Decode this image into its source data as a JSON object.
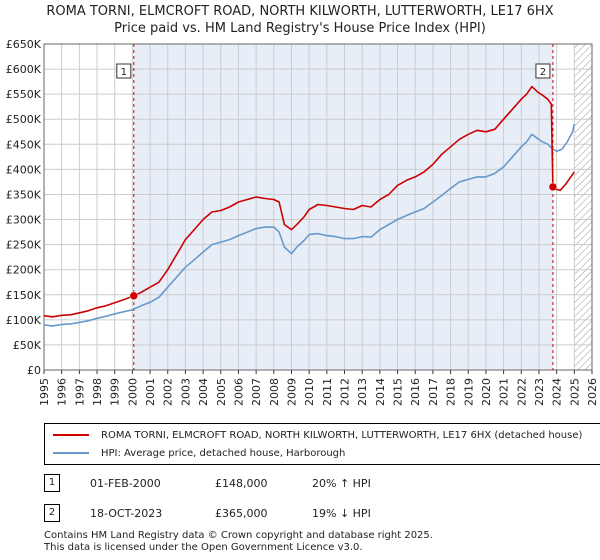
{
  "title_line1": "ROMA TORNI, ELMCROFT ROAD, NORTH KILWORTH, LUTTERWORTH, LE17 6HX",
  "title_line2": "Price paid vs. HM Land Registry's House Price Index (HPI)",
  "colors": {
    "property": "#cc0000",
    "hpi": "#6699cc",
    "shade": "#e8eef8",
    "grid": "#cccccc",
    "marker_line": "#cc0000"
  },
  "chart_data": {
    "type": "line",
    "title": "Price paid vs. HM Land Registry's House Price Index (HPI)",
    "xlabel": "",
    "ylabel": "",
    "xlim": [
      1995,
      2026
    ],
    "ylim": [
      0,
      650000
    ],
    "yticks": [
      {
        "v": 0,
        "label": "£0"
      },
      {
        "v": 50000,
        "label": "£50K"
      },
      {
        "v": 100000,
        "label": "£100K"
      },
      {
        "v": 150000,
        "label": "£150K"
      },
      {
        "v": 200000,
        "label": "£200K"
      },
      {
        "v": 250000,
        "label": "£250K"
      },
      {
        "v": 300000,
        "label": "£300K"
      },
      {
        "v": 350000,
        "label": "£350K"
      },
      {
        "v": 400000,
        "label": "£400K"
      },
      {
        "v": 450000,
        "label": "£450K"
      },
      {
        "v": 500000,
        "label": "£500K"
      },
      {
        "v": 550000,
        "label": "£550K"
      },
      {
        "v": 600000,
        "label": "£600K"
      },
      {
        "v": 650000,
        "label": "£650K"
      }
    ],
    "xticks": [
      "1995",
      "1996",
      "1997",
      "1998",
      "1999",
      "2000",
      "2001",
      "2002",
      "2003",
      "2004",
      "2005",
      "2006",
      "2007",
      "2008",
      "2009",
      "2010",
      "2011",
      "2012",
      "2013",
      "2014",
      "2015",
      "2016",
      "2017",
      "2018",
      "2019",
      "2020",
      "2021",
      "2022",
      "2023",
      "2024",
      "2025",
      "2026"
    ],
    "shaded_period": [
      2000.08,
      2023.79
    ],
    "future_hatch_from": 2025.0,
    "series": [
      {
        "name": "ROMA TORNI, ELMCROFT ROAD, NORTH KILWORTH, LUTTERWORTH, LE17 6HX (detached house)",
        "color": "#cc0000",
        "x": [
          1995.0,
          1995.5,
          1996.0,
          1996.5,
          1997.0,
          1997.5,
          1998.0,
          1998.5,
          1999.0,
          1999.5,
          2000.08,
          2000.5,
          2001.0,
          2001.5,
          2002.0,
          2002.5,
          2003.0,
          2003.5,
          2004.0,
          2004.5,
          2005.0,
          2005.5,
          2006.0,
          2006.5,
          2007.0,
          2007.5,
          2008.0,
          2008.3,
          2008.6,
          2009.0,
          2009.3,
          2009.7,
          2010.0,
          2010.5,
          2011.0,
          2011.5,
          2012.0,
          2012.5,
          2013.0,
          2013.5,
          2014.0,
          2014.5,
          2015.0,
          2015.5,
          2016.0,
          2016.5,
          2017.0,
          2017.5,
          2018.0,
          2018.5,
          2019.0,
          2019.5,
          2020.0,
          2020.5,
          2021.0,
          2021.5,
          2022.0,
          2022.3,
          2022.6,
          2022.9,
          2023.2,
          2023.5,
          2023.7,
          2023.79,
          2024.0,
          2024.2,
          2024.5,
          2024.8,
          2025.0
        ],
        "y": [
          108000,
          106000,
          109000,
          110000,
          114000,
          118000,
          124000,
          128000,
          134000,
          140000,
          148000,
          155000,
          165000,
          175000,
          200000,
          230000,
          260000,
          280000,
          300000,
          315000,
          318000,
          325000,
          335000,
          340000,
          345000,
          342000,
          340000,
          335000,
          290000,
          280000,
          290000,
          305000,
          320000,
          330000,
          328000,
          325000,
          322000,
          320000,
          328000,
          325000,
          340000,
          350000,
          368000,
          378000,
          385000,
          395000,
          410000,
          430000,
          445000,
          460000,
          470000,
          478000,
          475000,
          480000,
          500000,
          520000,
          540000,
          550000,
          565000,
          555000,
          548000,
          540000,
          530000,
          365000,
          360000,
          358000,
          370000,
          385000,
          395000
        ]
      },
      {
        "name": "HPI: Average price, detached house, Harborough",
        "color": "#6699cc",
        "x": [
          1995.0,
          1995.5,
          1996.0,
          1996.5,
          1997.0,
          1997.5,
          1998.0,
          1998.5,
          1999.0,
          1999.5,
          2000.0,
          2000.5,
          2001.0,
          2001.5,
          2002.0,
          2002.5,
          2003.0,
          2003.5,
          2004.0,
          2004.5,
          2005.0,
          2005.5,
          2006.0,
          2006.5,
          2007.0,
          2007.5,
          2008.0,
          2008.3,
          2008.6,
          2009.0,
          2009.3,
          2009.7,
          2010.0,
          2010.5,
          2011.0,
          2011.5,
          2012.0,
          2012.5,
          2013.0,
          2013.5,
          2014.0,
          2014.5,
          2015.0,
          2015.5,
          2016.0,
          2016.5,
          2017.0,
          2017.5,
          2018.0,
          2018.5,
          2019.0,
          2019.5,
          2020.0,
          2020.5,
          2021.0,
          2021.5,
          2022.0,
          2022.3,
          2022.6,
          2022.9,
          2023.2,
          2023.5,
          2023.8,
          2024.0,
          2024.3,
          2024.6,
          2024.9,
          2025.0
        ],
        "y": [
          90000,
          88000,
          91000,
          92000,
          95000,
          98000,
          103000,
          107000,
          112000,
          116000,
          120000,
          128000,
          135000,
          145000,
          165000,
          185000,
          205000,
          220000,
          235000,
          250000,
          255000,
          260000,
          268000,
          275000,
          282000,
          285000,
          285000,
          275000,
          245000,
          232000,
          245000,
          258000,
          270000,
          272000,
          268000,
          266000,
          262000,
          262000,
          266000,
          265000,
          280000,
          290000,
          300000,
          308000,
          315000,
          322000,
          335000,
          348000,
          362000,
          375000,
          380000,
          385000,
          385000,
          392000,
          405000,
          425000,
          445000,
          455000,
          470000,
          462000,
          455000,
          450000,
          440000,
          436000,
          440000,
          455000,
          475000,
          490000
        ]
      }
    ],
    "sales": [
      {
        "id": "1",
        "x": 2000.08,
        "y": 148000,
        "date": "01-FEB-2000",
        "price": "£148,000",
        "hpi": "20% ↑ HPI"
      },
      {
        "id": "2",
        "x": 2023.79,
        "y": 365000,
        "date": "18-OCT-2023",
        "price": "£365,000",
        "hpi": "19% ↓ HPI"
      }
    ]
  },
  "legend": {
    "property": "ROMA TORNI, ELMCROFT ROAD, NORTH KILWORTH, LUTTERWORTH, LE17 6HX (detached house)",
    "hpi": "HPI: Average price, detached house, Harborough"
  },
  "footer": {
    "line1": "Contains HM Land Registry data © Crown copyright and database right 2025.",
    "line2": "This data is licensed under the Open Government Licence v3.0."
  }
}
